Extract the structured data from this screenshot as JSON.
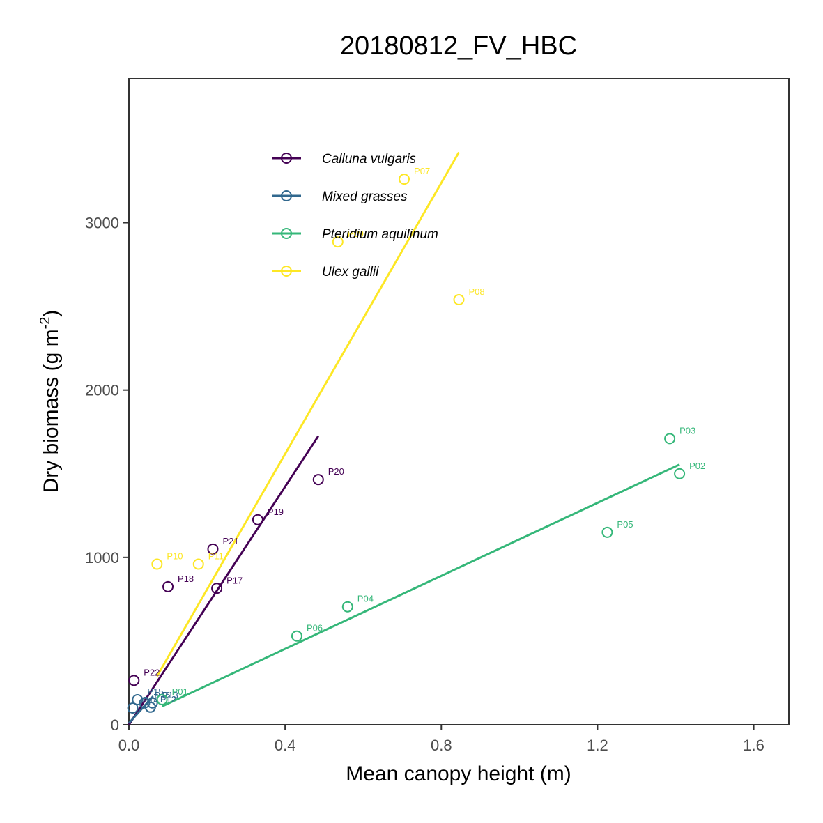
{
  "chart_data": {
    "type": "scatter",
    "title": "20180812_FV_HBC",
    "xlabel": "Mean canopy height (m)",
    "ylabel_main": "Dry biomass (g m",
    "ylabel_sup": "-2",
    "ylabel_close": ")",
    "xlim": [
      0,
      1.69
    ],
    "ylim": [
      0,
      3860
    ],
    "xticks": [
      0.0,
      0.4,
      0.8,
      1.2,
      1.6
    ],
    "xtick_labels": [
      "0.0",
      "0.4",
      "0.8",
      "1.2",
      "1.6"
    ],
    "yticks": [
      0,
      1000,
      2000,
      3000
    ],
    "ytick_labels": [
      "0",
      "1000",
      "2000",
      "3000"
    ],
    "grid": false,
    "legend_position": "top-left inside",
    "series": [
      {
        "name": "Calluna vulgaris",
        "color": "#440154",
        "points": [
          {
            "label": "P17",
            "x": 0.225,
            "y": 815
          },
          {
            "label": "P18",
            "x": 0.1,
            "y": 825
          },
          {
            "label": "P19",
            "x": 0.33,
            "y": 1225
          },
          {
            "label": "P20",
            "x": 0.485,
            "y": 1465
          },
          {
            "label": "P21",
            "x": 0.215,
            "y": 1050
          },
          {
            "label": "P22",
            "x": 0.013,
            "y": 265
          }
        ],
        "fit_line": [
          [
            0.0,
            0
          ],
          [
            0.485,
            1725
          ]
        ]
      },
      {
        "name": "Mixed grasses",
        "color": "#31688E",
        "points": [
          {
            "label": "P12",
            "x": 0.055,
            "y": 105
          },
          {
            "label": "P13",
            "x": 0.06,
            "y": 130
          },
          {
            "label": "P14",
            "x": 0.01,
            "y": 100
          },
          {
            "label": "P15",
            "x": 0.022,
            "y": 150
          },
          {
            "label": "P16",
            "x": 0.04,
            "y": 130
          }
        ],
        "fit_line": [
          [
            0.0,
            10
          ],
          [
            0.062,
            170
          ]
        ]
      },
      {
        "name": "Pteridium aquilinum",
        "color": "#35B779",
        "points": [
          {
            "label": "P01",
            "x": 0.085,
            "y": 150
          },
          {
            "label": "P02",
            "x": 1.41,
            "y": 1500
          },
          {
            "label": "P03",
            "x": 1.385,
            "y": 1710
          },
          {
            "label": "P04",
            "x": 0.56,
            "y": 705
          },
          {
            "label": "P05",
            "x": 1.225,
            "y": 1150
          },
          {
            "label": "P06",
            "x": 0.43,
            "y": 530
          }
        ],
        "fit_line": [
          [
            0.085,
            110
          ],
          [
            1.41,
            1555
          ]
        ]
      },
      {
        "name": "Ulex gallii",
        "color": "#FDE725",
        "points": [
          {
            "label": "P07",
            "x": 0.705,
            "y": 3260
          },
          {
            "label": "P08",
            "x": 0.845,
            "y": 2540
          },
          {
            "label": "P09",
            "x": 0.535,
            "y": 2885
          },
          {
            "label": "P10",
            "x": 0.072,
            "y": 960
          },
          {
            "label": "P11",
            "x": 0.178,
            "y": 960
          }
        ],
        "fit_line": [
          [
            0.072,
            290
          ],
          [
            0.845,
            3420
          ]
        ]
      }
    ]
  }
}
